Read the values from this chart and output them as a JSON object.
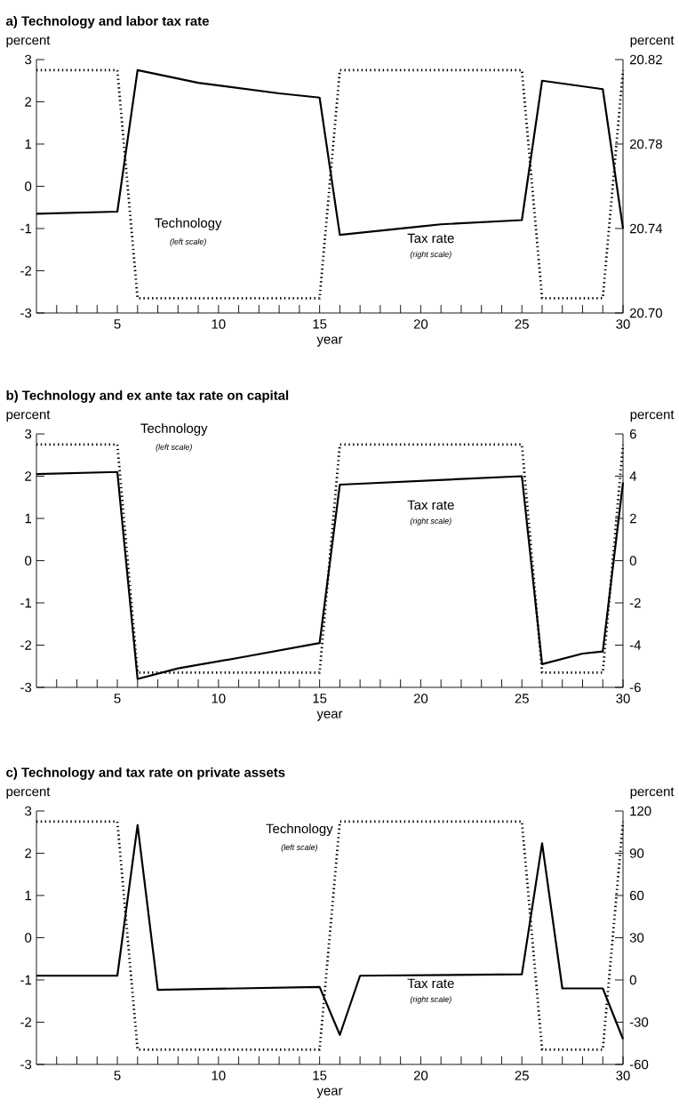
{
  "chart_data": [
    {
      "type": "line",
      "title": "a) Technology and labor tax rate",
      "xlabel": "year",
      "ylabel": "percent",
      "y2label": "percent",
      "x": [
        1,
        2,
        3,
        4,
        5,
        6,
        7,
        8,
        9,
        10,
        11,
        12,
        13,
        14,
        15,
        16,
        17,
        18,
        19,
        20,
        21,
        22,
        23,
        24,
        25,
        26,
        27,
        28,
        29,
        30
      ],
      "series": [
        {
          "name": "Technology",
          "color": "#000000",
          "line_style": "dotted",
          "values": [
            2.75,
            2.75,
            2.75,
            2.75,
            2.75,
            -2.65,
            -2.65,
            -2.65,
            -2.65,
            -2.65,
            -2.65,
            -2.65,
            -2.65,
            -2.65,
            -2.65,
            2.75,
            2.75,
            2.75,
            2.75,
            2.75,
            2.75,
            2.75,
            2.75,
            2.75,
            2.75,
            -2.65,
            -2.65,
            -2.65,
            -2.65,
            2.75
          ]
        },
        {
          "name": "Tax rate",
          "color": "#000000",
          "line_style": "solid",
          "axis": "y2",
          "x": [
            1,
            5,
            6,
            9,
            13,
            15,
            16,
            20,
            21,
            25,
            26,
            29,
            30
          ],
          "values": [
            20.747,
            20.748,
            20.815,
            20.809,
            20.804,
            20.802,
            20.737,
            20.741,
            20.742,
            20.744,
            20.81,
            20.806,
            20.74
          ]
        }
      ],
      "annotations": [
        "(left scale)",
        "(right scale)"
      ],
      "xlim": [
        1,
        30
      ],
      "xticks": [
        {
          "value": 2,
          "label": null
        },
        {
          "value": 3,
          "label": null
        },
        {
          "value": 4,
          "label": null
        },
        5,
        {
          "value": 6,
          "label": null
        },
        {
          "value": 7,
          "label": null
        },
        {
          "value": 8,
          "label": null
        },
        {
          "value": 9,
          "label": null
        },
        10,
        {
          "value": 11,
          "label": null
        },
        {
          "value": 12,
          "label": null
        },
        {
          "value": 13,
          "label": null
        },
        {
          "value": 14,
          "label": null
        },
        15,
        {
          "value": 16,
          "label": null
        },
        {
          "value": 17,
          "label": null
        },
        {
          "value": 18,
          "label": null
        },
        {
          "value": 19,
          "label": null
        },
        20,
        {
          "value": 21,
          "label": null
        },
        {
          "value": 22,
          "label": null
        },
        {
          "value": 23,
          "label": null
        },
        {
          "value": 24,
          "label": null
        },
        25,
        {
          "value": 26,
          "label": null
        },
        {
          "value": 27,
          "label": null
        },
        {
          "value": 28,
          "label": null
        },
        {
          "value": 29,
          "label": null
        },
        30
      ],
      "ylim": [
        -3,
        3
      ],
      "yticks": [
        -3,
        -2,
        -1,
        0,
        1,
        2,
        3
      ],
      "y2lim": [
        20.7,
        20.82
      ],
      "y2ticks": [
        {
          "value": 20.7,
          "label": "20.70"
        },
        20.74,
        20.78,
        20.82
      ]
    },
    {
      "type": "line",
      "title": "b) Technology and ex ante tax rate on capital",
      "xlabel": "year",
      "ylabel": "percent",
      "y2label": "percent",
      "x": [
        1,
        2,
        3,
        4,
        5,
        6,
        7,
        8,
        9,
        10,
        11,
        12,
        13,
        14,
        15,
        16,
        17,
        18,
        19,
        20,
        21,
        22,
        23,
        24,
        25,
        26,
        27,
        28,
        29,
        30
      ],
      "series": [
        {
          "name": "Technology",
          "color": "#000000",
          "line_style": "dotted",
          "values": [
            2.75,
            2.75,
            2.75,
            2.75,
            2.75,
            -2.65,
            -2.65,
            -2.65,
            -2.65,
            -2.65,
            -2.65,
            -2.65,
            -2.65,
            -2.65,
            -2.65,
            2.75,
            2.75,
            2.75,
            2.75,
            2.75,
            2.75,
            2.75,
            2.75,
            2.75,
            2.75,
            -2.65,
            -2.65,
            -2.65,
            -2.65,
            2.75
          ]
        },
        {
          "name": "Tax rate",
          "color": "#000000",
          "line_style": "solid",
          "axis": "y2",
          "x": [
            1,
            5,
            6,
            8,
            11,
            15,
            16,
            25,
            26,
            28,
            29,
            30
          ],
          "values": [
            4.1,
            4.2,
            -5.6,
            -5.1,
            -4.6,
            -3.9,
            3.6,
            4.0,
            -4.9,
            -4.4,
            -4.3,
            3.7
          ]
        }
      ],
      "annotations": [
        "(left scale)",
        "(right scale)"
      ],
      "xlim": [
        1,
        30
      ],
      "xticks": [
        {
          "value": 2,
          "label": null
        },
        {
          "value": 3,
          "label": null
        },
        {
          "value": 4,
          "label": null
        },
        5,
        {
          "value": 6,
          "label": null
        },
        {
          "value": 7,
          "label": null
        },
        {
          "value": 8,
          "label": null
        },
        {
          "value": 9,
          "label": null
        },
        10,
        {
          "value": 11,
          "label": null
        },
        {
          "value": 12,
          "label": null
        },
        {
          "value": 13,
          "label": null
        },
        {
          "value": 14,
          "label": null
        },
        15,
        {
          "value": 16,
          "label": null
        },
        {
          "value": 17,
          "label": null
        },
        {
          "value": 18,
          "label": null
        },
        {
          "value": 19,
          "label": null
        },
        20,
        {
          "value": 21,
          "label": null
        },
        {
          "value": 22,
          "label": null
        },
        {
          "value": 23,
          "label": null
        },
        {
          "value": 24,
          "label": null
        },
        25,
        {
          "value": 26,
          "label": null
        },
        {
          "value": 27,
          "label": null
        },
        {
          "value": 28,
          "label": null
        },
        {
          "value": 29,
          "label": null
        },
        30
      ],
      "ylim": [
        -3,
        3
      ],
      "yticks": [
        -3,
        -2,
        -1,
        0,
        1,
        2,
        3
      ],
      "y2lim": [
        -6,
        6
      ],
      "y2ticks": [
        -6,
        -4,
        -2,
        0,
        2,
        4,
        6
      ]
    },
    {
      "type": "line",
      "title": "c) Technology and tax rate on private assets",
      "xlabel": "year",
      "ylabel": "percent",
      "y2label": "percent",
      "x": [
        1,
        2,
        3,
        4,
        5,
        6,
        7,
        8,
        9,
        10,
        11,
        12,
        13,
        14,
        15,
        16,
        17,
        18,
        19,
        20,
        21,
        22,
        23,
        24,
        25,
        26,
        27,
        28,
        29,
        30
      ],
      "series": [
        {
          "name": "Technology",
          "color": "#000000",
          "line_style": "dotted",
          "values": [
            2.75,
            2.75,
            2.75,
            2.75,
            2.75,
            -2.65,
            -2.65,
            -2.65,
            -2.65,
            -2.65,
            -2.65,
            -2.65,
            -2.65,
            -2.65,
            -2.65,
            2.75,
            2.75,
            2.75,
            2.75,
            2.75,
            2.75,
            2.75,
            2.75,
            2.75,
            2.75,
            -2.65,
            -2.65,
            -2.65,
            -2.65,
            2.75
          ]
        },
        {
          "name": "Tax rate",
          "color": "#000000",
          "line_style": "solid",
          "axis": "y2",
          "x": [
            1,
            5,
            6,
            7,
            15,
            16,
            17,
            25,
            26,
            27,
            29,
            30
          ],
          "values": [
            3,
            3,
            110,
            -7,
            -5,
            -39,
            3,
            4,
            97,
            -6,
            -6,
            -42
          ]
        }
      ],
      "annotations": [
        "(left scale)",
        "(right scale)"
      ],
      "xlim": [
        1,
        30
      ],
      "xticks": [
        {
          "value": 2,
          "label": null
        },
        {
          "value": 3,
          "label": null
        },
        {
          "value": 4,
          "label": null
        },
        5,
        {
          "value": 6,
          "label": null
        },
        {
          "value": 7,
          "label": null
        },
        {
          "value": 8,
          "label": null
        },
        {
          "value": 9,
          "label": null
        },
        10,
        {
          "value": 11,
          "label": null
        },
        {
          "value": 12,
          "label": null
        },
        {
          "value": 13,
          "label": null
        },
        {
          "value": 14,
          "label": null
        },
        15,
        {
          "value": 16,
          "label": null
        },
        {
          "value": 17,
          "label": null
        },
        {
          "value": 18,
          "label": null
        },
        {
          "value": 19,
          "label": null
        },
        20,
        {
          "value": 21,
          "label": null
        },
        {
          "value": 22,
          "label": null
        },
        {
          "value": 23,
          "label": null
        },
        {
          "value": 24,
          "label": null
        },
        25,
        {
          "value": 26,
          "label": null
        },
        {
          "value": 27,
          "label": null
        },
        {
          "value": 28,
          "label": null
        },
        {
          "value": 29,
          "label": null
        },
        30
      ],
      "ylim": [
        -3,
        3
      ],
      "yticks": [
        -3,
        -2,
        -1,
        0,
        1,
        2,
        3
      ],
      "y2lim": [
        -60,
        120
      ],
      "y2ticks": [
        -60,
        -30,
        0,
        30,
        60,
        90,
        120
      ]
    }
  ]
}
